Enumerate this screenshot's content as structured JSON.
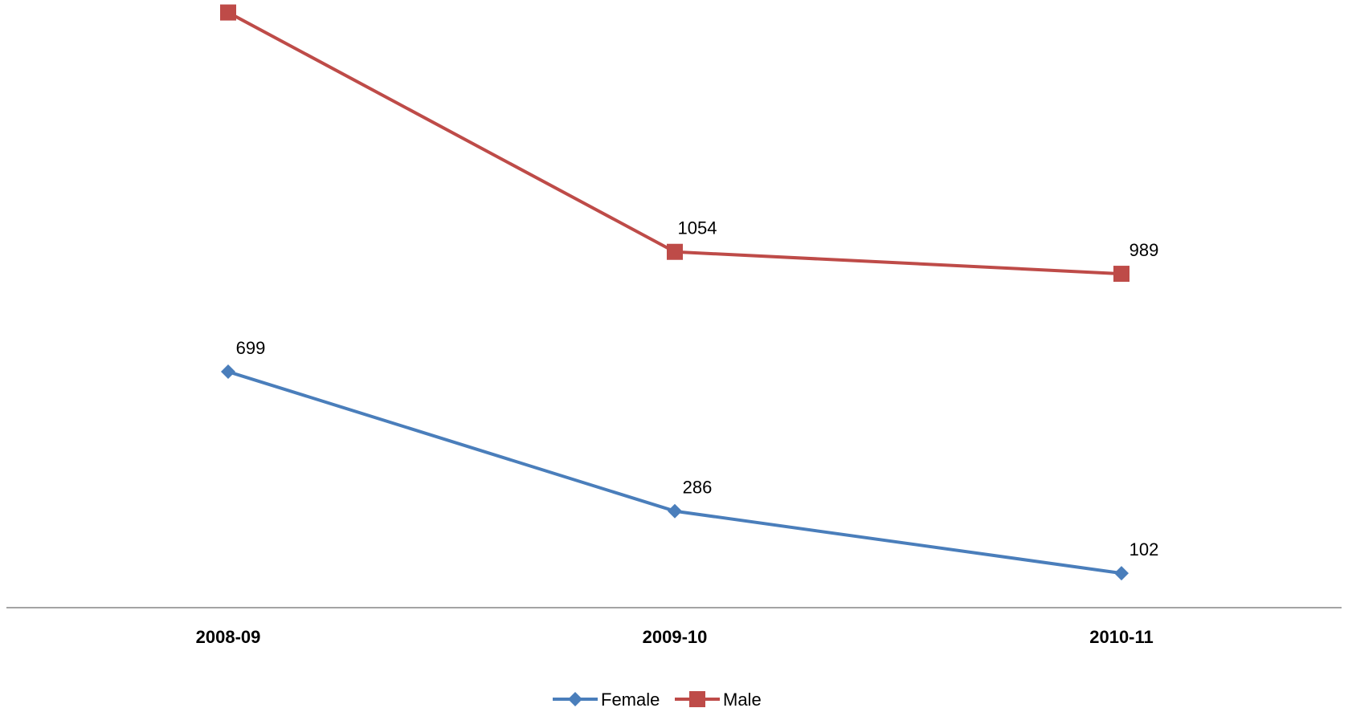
{
  "chart_data": {
    "type": "line",
    "categories": [
      "2008-09",
      "2009-10",
      "2010-11"
    ],
    "series": [
      {
        "name": "Female",
        "values": [
          699,
          286,
          102
        ],
        "color": "#4a7ebb",
        "marker": "diamond"
      },
      {
        "name": "Male",
        "values": [
          1763,
          1054,
          989
        ],
        "color": "#be4b48",
        "marker": "square"
      }
    ],
    "title": "",
    "xlabel": "",
    "ylabel": "",
    "ylim": [
      0,
      1800
    ],
    "grid": false,
    "data_labels": true,
    "legend_position": "bottom"
  }
}
